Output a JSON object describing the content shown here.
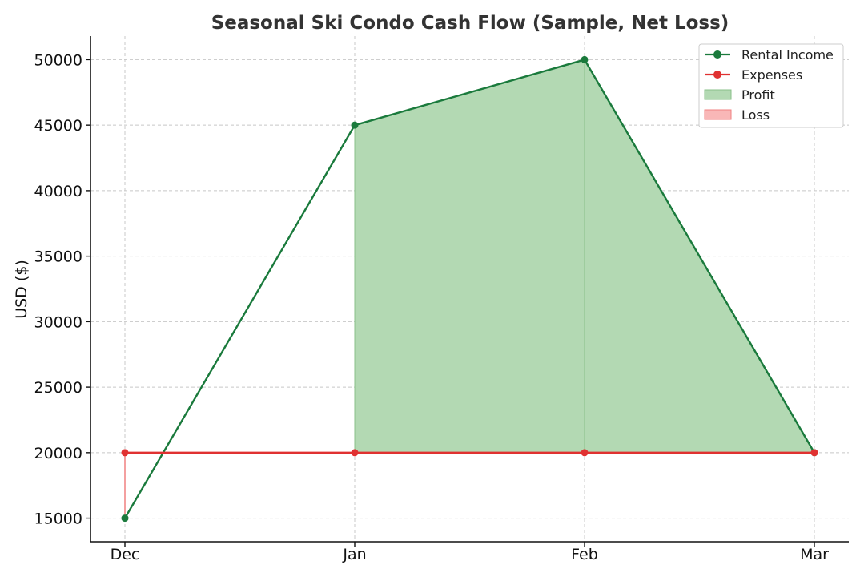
{
  "chart_data": {
    "type": "line",
    "title": "Seasonal Ski Condo Cash Flow (Sample, Net Loss)",
    "xlabel": "",
    "ylabel": "USD ($)",
    "categories": [
      "Dec",
      "Jan",
      "Feb",
      "Mar"
    ],
    "ylim": [
      13200,
      51800
    ],
    "yticks": [
      15000,
      20000,
      25000,
      30000,
      35000,
      40000,
      45000,
      50000
    ],
    "grid": true,
    "legend_position": "top-right",
    "series": [
      {
        "name": "Rental Income",
        "values": [
          15000,
          45000,
          50000,
          20000
        ],
        "color": "#1a7a3c"
      },
      {
        "name": "Expenses",
        "values": [
          20000,
          20000,
          20000,
          20000
        ],
        "color": "#e03131"
      }
    ],
    "fills": [
      {
        "name": "Profit",
        "color": "#b3d9b3",
        "edge": "#88c088"
      },
      {
        "name": "Loss",
        "color": "#f9b7b7",
        "edge": "#f08080"
      }
    ]
  }
}
